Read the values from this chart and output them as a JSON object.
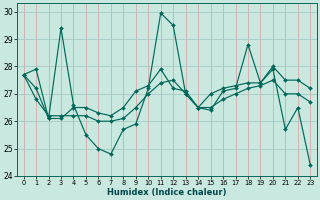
{
  "title": "",
  "xlabel": "Humidex (Indice chaleur)",
  "xlim": [
    -0.5,
    23.5
  ],
  "ylim": [
    24.0,
    30.3
  ],
  "yticks": [
    24,
    25,
    26,
    27,
    28,
    29,
    30
  ],
  "xticks": [
    0,
    1,
    2,
    3,
    4,
    5,
    6,
    7,
    8,
    9,
    10,
    11,
    12,
    13,
    14,
    15,
    16,
    17,
    18,
    19,
    20,
    21,
    22,
    23
  ],
  "bg_color": "#c8e8e0",
  "grid_color_major": "#c8a0a0",
  "grid_color_minor": "#b0d0c8",
  "line_color": "#006858",
  "series1": [
    27.7,
    27.9,
    26.1,
    29.4,
    26.6,
    25.5,
    25.0,
    24.8,
    25.7,
    25.9,
    27.2,
    29.95,
    29.5,
    27.0,
    26.5,
    26.4,
    27.1,
    27.2,
    28.8,
    27.4,
    27.9,
    25.7,
    26.5,
    24.4
  ],
  "series2": [
    27.7,
    27.2,
    26.1,
    26.1,
    26.5,
    26.5,
    26.3,
    26.2,
    26.5,
    27.1,
    27.3,
    27.9,
    27.2,
    27.1,
    26.5,
    27.0,
    27.2,
    27.3,
    27.4,
    27.4,
    28.0,
    27.5,
    27.5,
    27.2
  ],
  "series3": [
    27.7,
    26.8,
    26.2,
    26.2,
    26.2,
    26.2,
    26.0,
    26.0,
    26.1,
    26.5,
    27.0,
    27.4,
    27.5,
    27.0,
    26.5,
    26.5,
    26.8,
    27.0,
    27.2,
    27.3,
    27.5,
    27.0,
    27.0,
    26.7
  ]
}
